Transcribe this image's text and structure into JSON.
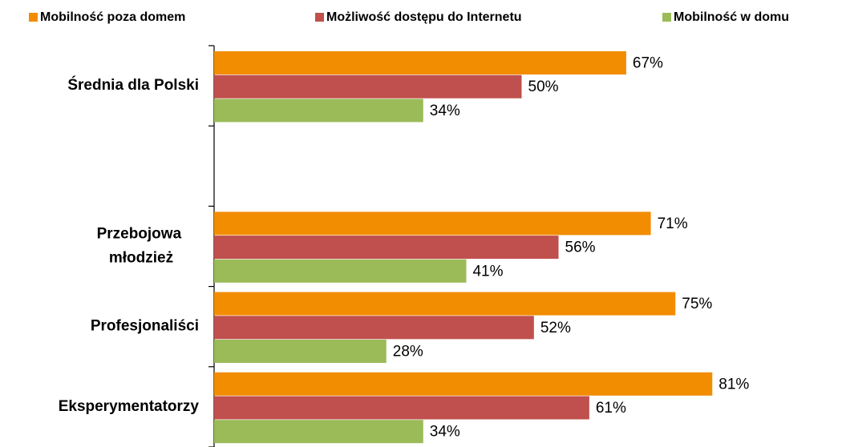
{
  "chart_data": {
    "type": "hbar",
    "categories": [
      "Średnia dla Polski",
      null,
      "Przebojowa młodzież",
      "Profesjonaliści",
      "Eksperymentatorzy"
    ],
    "series": [
      {
        "name": "Mobilność poza domem",
        "color": "#f28c00",
        "values": [
          67,
          null,
          71,
          75,
          81
        ],
        "value_labels": [
          "67%",
          null,
          "71%",
          "75%",
          "81%"
        ]
      },
      {
        "name": "Możliwość dostępu do Internetu",
        "color": "#c0504d",
        "values": [
          50,
          null,
          56,
          52,
          61
        ],
        "value_labels": [
          "50%",
          null,
          "56%",
          "52%",
          "61%"
        ]
      },
      {
        "name": "Mobilność w domu",
        "color": "#9bbb59",
        "values": [
          34,
          null,
          41,
          28,
          34
        ],
        "value_labels": [
          "34%",
          null,
          "41%",
          "28%",
          "34%"
        ]
      }
    ],
    "xlim": [
      0,
      100
    ],
    "legend": "top"
  }
}
